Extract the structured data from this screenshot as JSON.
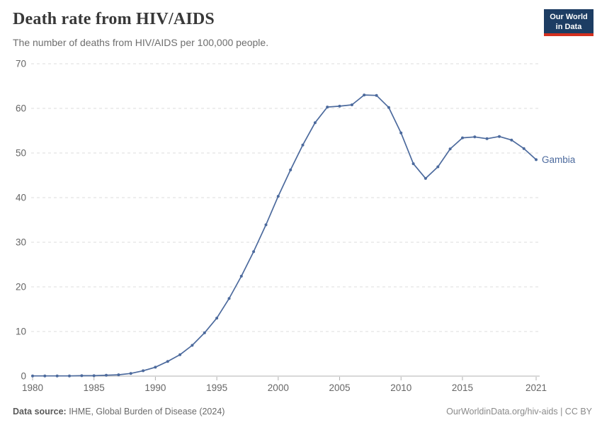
{
  "header": {
    "title": "Death rate from HIV/AIDS",
    "subtitle": "The number of deaths from HIV/AIDS per 100,000 people."
  },
  "logo": {
    "line1": "Our World",
    "line2": "in Data",
    "bg_color": "#1d3d63",
    "accent_color": "#d4301f"
  },
  "chart_data": {
    "type": "line",
    "title": "Death rate from HIV/AIDS",
    "xlabel": "",
    "ylabel": "",
    "xlim": [
      1980,
      2021
    ],
    "ylim": [
      0,
      70
    ],
    "xticks": [
      1980,
      1985,
      1990,
      1995,
      2000,
      2005,
      2010,
      2015,
      2021
    ],
    "yticks": [
      0,
      10,
      20,
      30,
      40,
      50,
      60,
      70
    ],
    "grid": "horizontal-dashed",
    "legend_position": "end-of-line-label",
    "series": [
      {
        "name": "Gambia",
        "color": "#4c6a9d",
        "x": [
          1980,
          1981,
          1982,
          1983,
          1984,
          1985,
          1986,
          1987,
          1988,
          1989,
          1990,
          1991,
          1992,
          1993,
          1994,
          1995,
          1996,
          1997,
          1998,
          1999,
          2000,
          2001,
          2002,
          2003,
          2004,
          2005,
          2006,
          2007,
          2008,
          2009,
          2010,
          2011,
          2012,
          2013,
          2014,
          2015,
          2016,
          2017,
          2018,
          2019,
          2020,
          2021
        ],
        "values": [
          0.05,
          0.05,
          0.05,
          0.05,
          0.1,
          0.1,
          0.2,
          0.3,
          0.6,
          1.2,
          2.0,
          3.3,
          4.8,
          6.9,
          9.7,
          13.0,
          17.4,
          22.4,
          27.9,
          33.9,
          40.3,
          46.2,
          51.8,
          56.8,
          60.3,
          60.5,
          60.8,
          63.0,
          62.9,
          60.2,
          54.5,
          47.6,
          44.3,
          46.9,
          50.9,
          53.4,
          53.6,
          53.2,
          53.7,
          52.9,
          51.0,
          48.5
        ]
      }
    ],
    "colors": {
      "axis_text": "#666666",
      "gridline": "#dddddd",
      "axis_line": "#b0b0b0",
      "tick_mark": "#b0b0b0"
    }
  },
  "footer": {
    "source_label": "Data source:",
    "source_text": " IHME, Global Burden of Disease (2024)",
    "credit": "OurWorldinData.org/hiv-aids | CC BY"
  }
}
